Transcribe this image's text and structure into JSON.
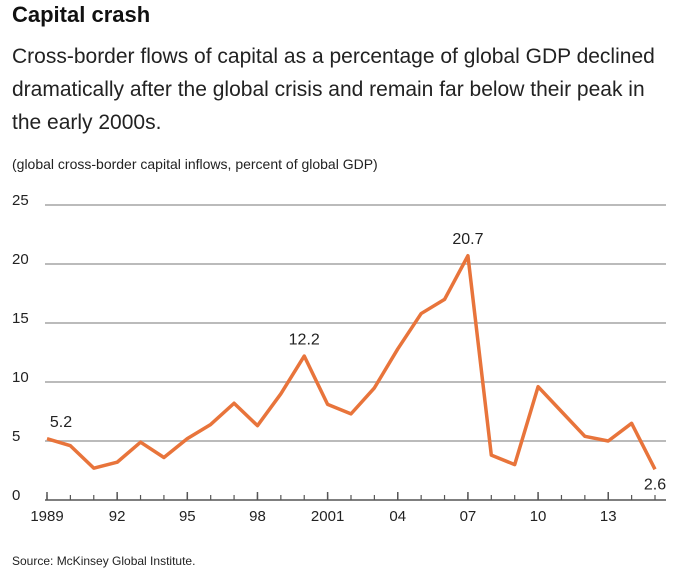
{
  "chart_data": {
    "type": "line",
    "title": "Capital crash",
    "subtitle": "Cross-border flows of capital as a percentage of global GDP declined dramatically after the global crisis and remain far below their peak in the early 2000s.",
    "y_axis_label": "(global cross-border capital inflows, percent of global GDP)",
    "source": "Source: McKinsey Global Institute.",
    "x": [
      1989,
      1990,
      1991,
      1992,
      1993,
      1994,
      1995,
      1996,
      1997,
      1998,
      1999,
      2000,
      2001,
      2002,
      2003,
      2004,
      2005,
      2006,
      2007,
      2008,
      2009,
      2010,
      2011,
      2012,
      2013,
      2014,
      2015
    ],
    "series": [
      {
        "color": "#e8743b",
        "values": [
          5.2,
          4.6,
          2.7,
          3.2,
          4.9,
          3.6,
          5.2,
          6.4,
          8.2,
          6.3,
          9.0,
          12.2,
          8.1,
          7.3,
          9.5,
          12.8,
          15.8,
          17.0,
          20.7,
          3.8,
          3.0,
          9.6,
          7.5,
          5.4,
          5.0,
          6.5,
          2.6
        ],
        "value_labels": [
          "5.2",
          null,
          null,
          null,
          null,
          null,
          null,
          null,
          null,
          null,
          null,
          "12.2",
          null,
          null,
          null,
          null,
          null,
          null,
          "20.7",
          null,
          null,
          null,
          null,
          null,
          null,
          null,
          "2.6"
        ]
      }
    ],
    "xlim": [
      1989,
      2015
    ],
    "xticks": [
      1989,
      {
        "value": 1992,
        "label": "92"
      },
      {
        "value": 1995,
        "label": "95"
      },
      {
        "value": 1998,
        "label": "98"
      },
      2001,
      {
        "value": 2004,
        "label": "04"
      },
      {
        "value": 2007,
        "label": "07"
      },
      {
        "value": 2010,
        "label": "10"
      },
      {
        "value": 2013,
        "label": "13"
      }
    ],
    "ylim": [
      0,
      25
    ],
    "yticks": [
      0,
      5,
      10,
      15,
      20,
      25
    ],
    "grid": true
  }
}
